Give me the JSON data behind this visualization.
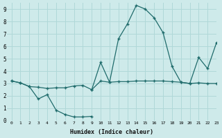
{
  "xlabel": "Humidex (Indice chaleur)",
  "xlim": [
    -0.5,
    23
  ],
  "ylim": [
    0,
    9.5
  ],
  "xticks": [
    0,
    1,
    2,
    3,
    4,
    5,
    6,
    7,
    8,
    9,
    10,
    11,
    12,
    13,
    14,
    15,
    16,
    17,
    18,
    19,
    20,
    21,
    22,
    23
  ],
  "yticks": [
    0,
    1,
    2,
    3,
    4,
    5,
    6,
    7,
    8,
    9
  ],
  "line1_x": [
    0,
    1,
    2,
    3,
    4,
    5,
    6,
    7,
    8,
    9,
    10,
    11,
    12,
    13,
    14,
    15,
    16,
    17,
    18,
    19,
    20,
    21,
    22,
    23
  ],
  "line1_y": [
    3.2,
    3.05,
    2.75,
    1.75,
    2.1,
    0.85,
    0.5,
    0.3,
    0.3,
    0.35,
    2.5,
    null,
    null,
    null,
    null,
    null,
    null,
    null,
    null,
    null,
    null,
    null,
    null,
    null
  ],
  "line2_x": [
    0,
    1,
    2,
    3,
    4,
    5,
    6,
    7,
    8,
    9,
    10,
    11,
    12,
    13,
    14,
    15,
    16,
    17,
    18,
    19,
    20,
    21,
    22,
    23
  ],
  "line2_y": [
    3.2,
    3.05,
    2.75,
    2.7,
    2.6,
    2.65,
    2.65,
    2.8,
    2.85,
    2.5,
    3.2,
    3.1,
    3.15,
    3.15,
    3.2,
    3.2,
    3.2,
    3.2,
    3.15,
    3.1,
    3.0,
    3.05,
    3.0,
    3.0
  ],
  "line3_x": [
    9,
    10,
    11,
    12,
    13,
    14,
    15,
    16,
    17,
    18,
    19,
    20,
    21,
    22,
    23
  ],
  "line3_y": [
    2.5,
    4.7,
    3.1,
    6.6,
    7.8,
    9.3,
    9.0,
    8.3,
    7.1,
    4.4,
    3.1,
    3.0,
    5.1,
    4.2,
    6.3
  ],
  "line_color": "#1f6b6b",
  "bg_color": "#ceeaea",
  "grid_color": "#b0d8d8",
  "marker": "+"
}
